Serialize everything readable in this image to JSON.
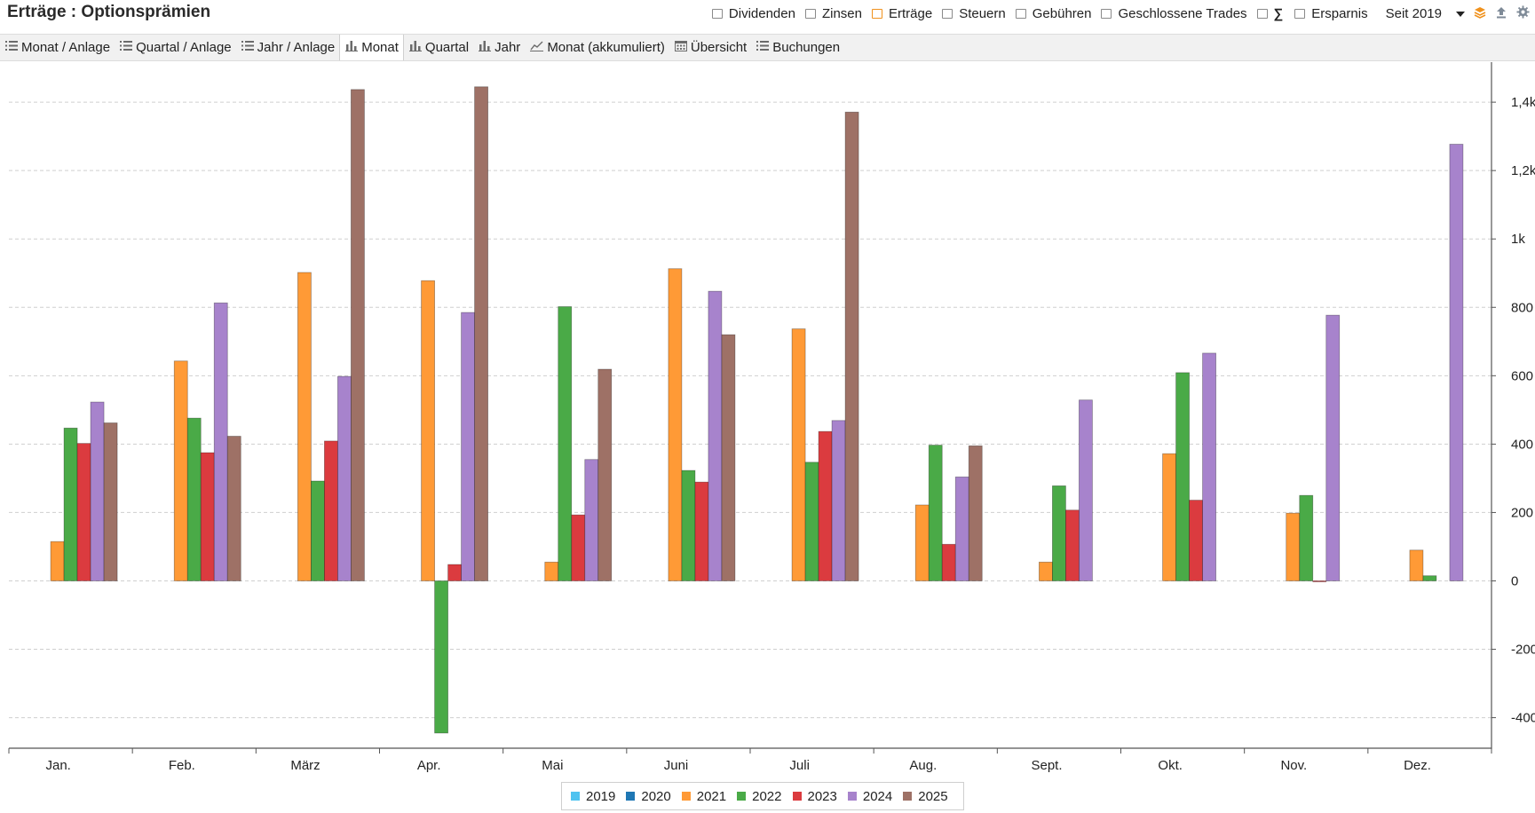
{
  "header": {
    "title": "Erträge : Optionsprämien",
    "filters": [
      {
        "label": "Dividenden",
        "active": false
      },
      {
        "label": "Zinsen",
        "active": false
      },
      {
        "label": "Erträge",
        "active": true
      },
      {
        "label": "Steuern",
        "active": false
      },
      {
        "label": "Gebühren",
        "active": false
      },
      {
        "label": "Geschlossene Trades",
        "active": false
      }
    ],
    "sum_symbol": "∑",
    "ersparnis_label": "Ersparnis",
    "period_label": "Seit 2019",
    "icons": [
      "layers-icon",
      "upload-icon",
      "gear-icon"
    ],
    "colors": {
      "active_checkbox": "#f0921e",
      "layers_icon": "#f0921e",
      "icon_gray": "#7e8a97"
    }
  },
  "tabs": [
    {
      "label": "Monat / Anlage",
      "icon": "list-icon",
      "active": false
    },
    {
      "label": "Quartal / Anlage",
      "icon": "list-icon",
      "active": false
    },
    {
      "label": "Jahr / Anlage",
      "icon": "list-icon",
      "active": false
    },
    {
      "label": "Monat",
      "icon": "bar-chart-icon",
      "active": true
    },
    {
      "label": "Quartal",
      "icon": "bar-chart-icon",
      "active": false
    },
    {
      "label": "Jahr",
      "icon": "bar-chart-icon",
      "active": false
    },
    {
      "label": "Monat (akkumuliert)",
      "icon": "line-chart-icon",
      "active": false
    },
    {
      "label": "Übersicht",
      "icon": "calendar-icon",
      "active": false
    },
    {
      "label": "Buchungen",
      "icon": "list-icon",
      "active": false
    }
  ],
  "chart_data": {
    "type": "bar",
    "categories": [
      "Jan.",
      "Feb.",
      "März",
      "Apr.",
      "Mai",
      "Juni",
      "Juli",
      "Aug.",
      "Sept.",
      "Okt.",
      "Nov.",
      "Dez."
    ],
    "y_ticks": [
      -400,
      -200,
      0,
      200,
      400,
      600,
      800,
      1000,
      1200,
      1400
    ],
    "y_tick_labels": [
      "-400",
      "-200",
      "0",
      "200",
      "400",
      "600",
      "800",
      "1k",
      "1,2k",
      "1,4k"
    ],
    "ylim": [
      -440,
      1460
    ],
    "y_axis_position": "right",
    "grid": "horizontal-dashed",
    "legend_position": "bottom-center",
    "series": [
      {
        "name": "2019",
        "color": "#4fc3f0",
        "values": [
          null,
          null,
          null,
          null,
          null,
          null,
          null,
          null,
          null,
          null,
          null,
          null
        ]
      },
      {
        "name": "2020",
        "color": "#1f77b4",
        "values": [
          null,
          null,
          null,
          null,
          null,
          null,
          null,
          null,
          null,
          null,
          null,
          null
        ]
      },
      {
        "name": "2021",
        "color": "#ff9a36",
        "values": [
          115,
          643,
          902,
          878,
          55,
          913,
          737,
          222,
          55,
          372,
          198,
          90
        ]
      },
      {
        "name": "2022",
        "color": "#4aaa47",
        "values": [
          447,
          476,
          292,
          -445,
          802,
          323,
          347,
          397,
          278,
          609,
          250,
          15
        ]
      },
      {
        "name": "2023",
        "color": "#db3b3f",
        "values": [
          402,
          375,
          409,
          48,
          193,
          289,
          437,
          107,
          207,
          236,
          -2,
          null
        ]
      },
      {
        "name": "2024",
        "color": "#a783cc",
        "values": [
          523,
          813,
          598,
          785,
          355,
          847,
          469,
          304,
          529,
          666,
          777,
          1277
        ]
      },
      {
        "name": "2025",
        "color": "#9e7166",
        "values": [
          462,
          423,
          1437,
          1445,
          619,
          720,
          1371,
          395,
          null,
          null,
          null,
          null
        ]
      }
    ]
  }
}
